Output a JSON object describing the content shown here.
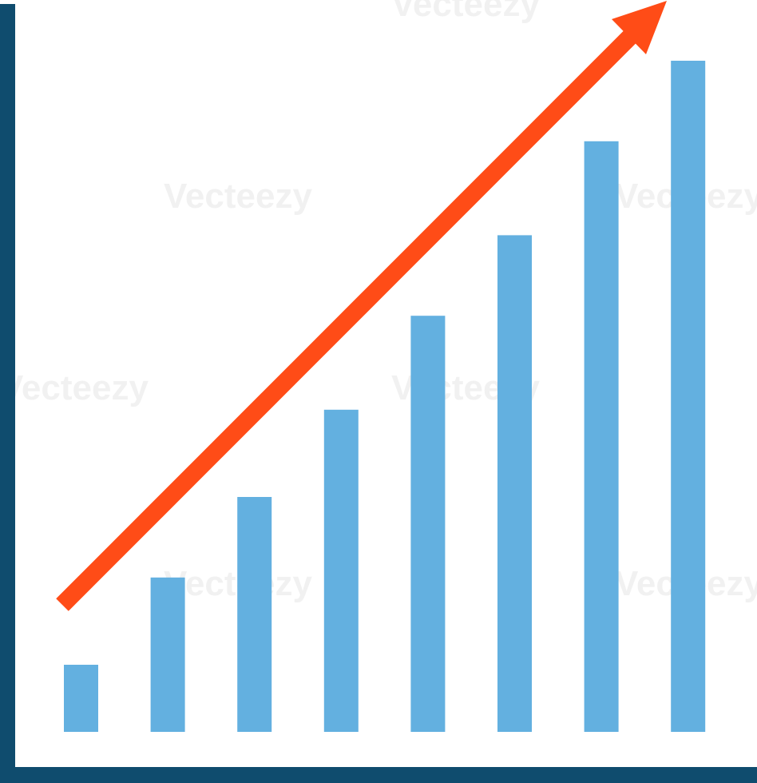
{
  "chart_data": {
    "type": "bar",
    "categories": [
      null,
      null,
      null,
      null,
      null,
      null,
      null,
      null
    ],
    "values": [
      1.0,
      2.3,
      3.5,
      4.8,
      6.2,
      7.4,
      8.8,
      10
    ],
    "color": "#63b0e0",
    "ylim": [
      0,
      10
    ],
    "axis_color": "#0f4c6e",
    "trend_arrow_color": "#ff4c17",
    "watermark": "Vecteezy"
  }
}
